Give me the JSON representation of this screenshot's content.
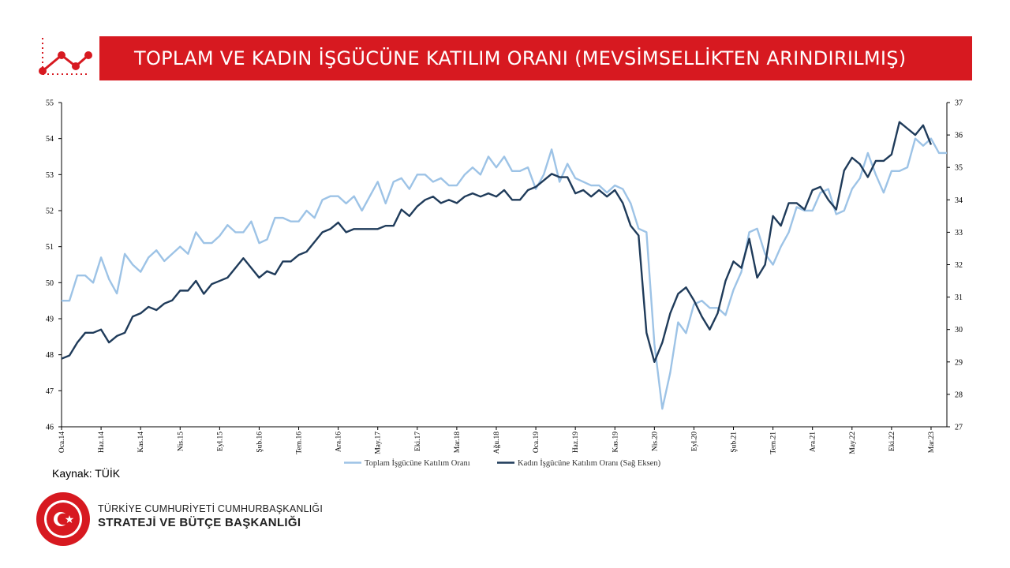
{
  "header": {
    "title": "TOPLAM VE KADIN İŞGÜCÜNE KATILIM ORANI (MEVSİMSELLİKTEN ARINDIRILMIŞ)"
  },
  "source": "Kaynak: TÜİK",
  "org": {
    "line1": "TÜRKİYE CUMHURİYETİ CUMHURBAŞKANLIĞI",
    "line2": "STRATEJİ VE BÜTÇE BAŞKANLIĞI",
    "seal_text": "T.C. CUMHURBAŞKANLIĞI STRATEJİ VE BÜTÇE BAŞKANLIĞI"
  },
  "colors": {
    "brand_red": "#d71920",
    "series_total": "#9dc3e6",
    "series_women": "#1f3b5a"
  },
  "chart_data": {
    "type": "line",
    "start": "2014-01",
    "frequency": "monthly",
    "x_tick_labels": [
      "Oca.14",
      "Haz.14",
      "Kas.14",
      "Nis.15",
      "Eyl.15",
      "Şub.16",
      "Tem.16",
      "Ara.16",
      "May.17",
      "Eki.17",
      "Mar.18",
      "Ağu.18",
      "Oca.19",
      "Haz.19",
      "Kas.19",
      "Nis.20",
      "Eyl.20",
      "Şub.21",
      "Tem.21",
      "Ara.21",
      "May.22",
      "Eki.22",
      "Mar.23"
    ],
    "y_left": {
      "min": 46,
      "max": 55,
      "ticks": [
        46,
        47,
        48,
        49,
        50,
        51,
        52,
        53,
        54,
        55
      ]
    },
    "y_right": {
      "min": 27,
      "max": 37,
      "ticks": [
        27,
        28,
        29,
        30,
        31,
        32,
        33,
        34,
        35,
        36,
        37
      ]
    },
    "legend_position": "bottom",
    "series": [
      {
        "name": "Toplam İşgücüne Katılım Oranı",
        "axis": "left",
        "values": [
          49.5,
          49.5,
          50.2,
          50.2,
          50.0,
          50.7,
          50.1,
          49.7,
          50.8,
          50.5,
          50.3,
          50.7,
          50.9,
          50.6,
          50.8,
          51.0,
          50.8,
          51.4,
          51.1,
          51.1,
          51.3,
          51.6,
          51.4,
          51.4,
          51.7,
          51.1,
          51.2,
          51.8,
          51.8,
          51.7,
          51.7,
          52.0,
          51.8,
          52.3,
          52.4,
          52.4,
          52.2,
          52.4,
          52.0,
          52.4,
          52.8,
          52.2,
          52.8,
          52.9,
          52.6,
          53.0,
          53.0,
          52.8,
          52.9,
          52.7,
          52.7,
          53.0,
          53.2,
          53.0,
          53.5,
          53.2,
          53.5,
          53.1,
          53.1,
          53.2,
          52.6,
          53.0,
          53.7,
          52.8,
          53.3,
          52.9,
          52.8,
          52.7,
          52.7,
          52.5,
          52.7,
          52.6,
          52.2,
          51.5,
          51.4,
          48.3,
          46.5,
          47.5,
          48.9,
          48.6,
          49.4,
          49.5,
          49.3,
          49.3,
          49.1,
          49.8,
          50.3,
          51.4,
          51.5,
          50.8,
          50.5,
          51.0,
          51.4,
          52.1,
          52.0,
          52.0,
          52.5,
          52.6,
          51.9,
          52.0,
          52.6,
          52.9,
          53.6,
          53.0,
          52.5,
          53.1,
          53.1,
          53.2,
          54.0,
          53.8,
          54.0,
          53.6,
          53.6
        ],
        "color": "#9dc3e6"
      },
      {
        "name": "Kadın İşgücüne Katılım Oranı (Sağ Eksen)",
        "axis": "right",
        "values": [
          29.1,
          29.2,
          29.6,
          29.9,
          29.9,
          30.0,
          29.6,
          29.8,
          29.9,
          30.4,
          30.5,
          30.7,
          30.6,
          30.8,
          30.9,
          31.2,
          31.2,
          31.5,
          31.1,
          31.4,
          31.5,
          31.6,
          31.9,
          32.2,
          31.9,
          31.6,
          31.8,
          31.7,
          32.1,
          32.1,
          32.3,
          32.4,
          32.7,
          33.0,
          33.1,
          33.3,
          33.0,
          33.1,
          33.1,
          33.1,
          33.1,
          33.2,
          33.2,
          33.7,
          33.5,
          33.8,
          34.0,
          34.1,
          33.9,
          34.0,
          33.9,
          34.1,
          34.2,
          34.1,
          34.2,
          34.1,
          34.3,
          34.0,
          34.0,
          34.3,
          34.4,
          34.6,
          34.8,
          34.7,
          34.7,
          34.2,
          34.3,
          34.1,
          34.3,
          34.1,
          34.3,
          33.9,
          33.2,
          32.9,
          29.9,
          29.0,
          29.6,
          30.5,
          31.1,
          31.3,
          30.9,
          30.4,
          30.0,
          30.5,
          31.5,
          32.1,
          31.9,
          32.8,
          31.6,
          32.0,
          33.5,
          33.2,
          33.9,
          33.9,
          33.7,
          34.3,
          34.4,
          34.0,
          33.7,
          34.9,
          35.3,
          35.1,
          34.7,
          35.2,
          35.2,
          35.4,
          36.4,
          36.2,
          36.0,
          36.3,
          35.7
        ],
        "color": "#1f3b5a"
      }
    ]
  }
}
